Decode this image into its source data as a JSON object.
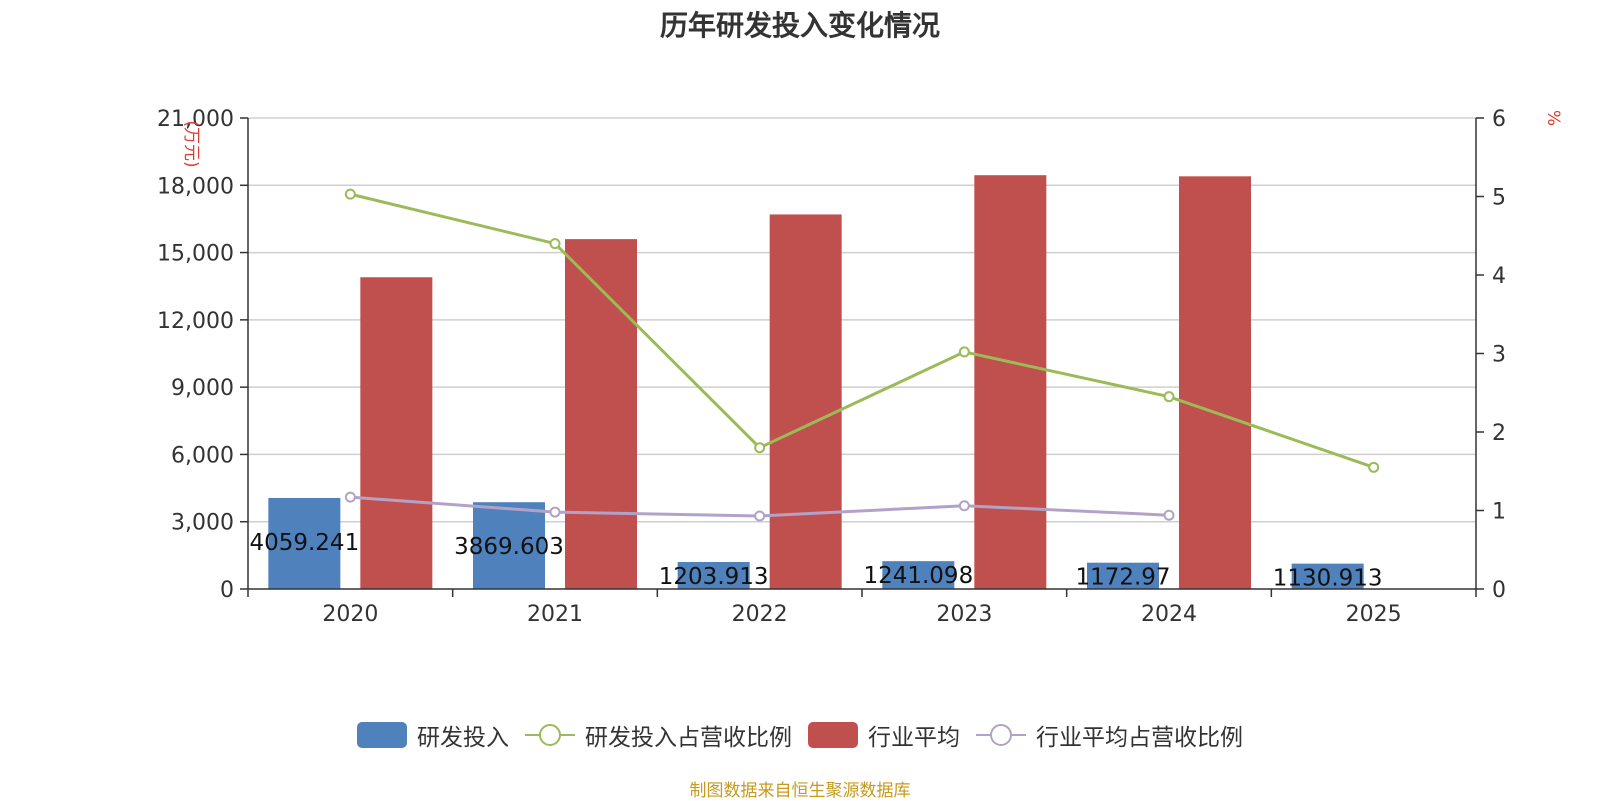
{
  "chart_data": {
    "type": "bar",
    "title": "历年研发投入变化情况",
    "categories": [
      "2020",
      "2021",
      "2022",
      "2023",
      "2024",
      "2025"
    ],
    "ylabel_left": "(万元)",
    "ylabel_right": "%",
    "y_left": {
      "min": 0,
      "max": 21000,
      "ticks": [
        "0",
        "3,000",
        "6,000",
        "9,000",
        "12,000",
        "15,000",
        "18,000",
        "21,000"
      ]
    },
    "y_right": {
      "min": 0,
      "max": 6,
      "ticks": [
        "0",
        "1",
        "2",
        "3",
        "4",
        "5",
        "6"
      ]
    },
    "grid": true,
    "legend_position": "bottom",
    "series": [
      {
        "name": "研发投入",
        "type": "bar",
        "axis": "left",
        "color": "#4f81bd",
        "values": [
          4059.241,
          3869.603,
          1203.913,
          1241.098,
          1172.97,
          1130.913
        ],
        "labels": [
          "4059.241",
          "3869.603",
          "1203.913",
          "1241.098",
          "1172.97",
          "1130.913"
        ]
      },
      {
        "name": "研发投入占营收比例",
        "type": "line",
        "axis": "right",
        "color": "#9bbb59",
        "values": [
          5.03,
          4.4,
          1.8,
          3.02,
          2.45,
          1.55
        ]
      },
      {
        "name": "行业平均",
        "type": "bar",
        "axis": "left",
        "color": "#c0504d",
        "values": [
          13900,
          15600,
          16700,
          18450,
          18400,
          null
        ]
      },
      {
        "name": "行业平均占营收比例",
        "type": "line",
        "axis": "right",
        "color": "#b3a2c7",
        "values": [
          1.17,
          0.98,
          0.93,
          1.06,
          0.94,
          null
        ]
      }
    ]
  },
  "footer": "制图数据来自恒生聚源数据库"
}
